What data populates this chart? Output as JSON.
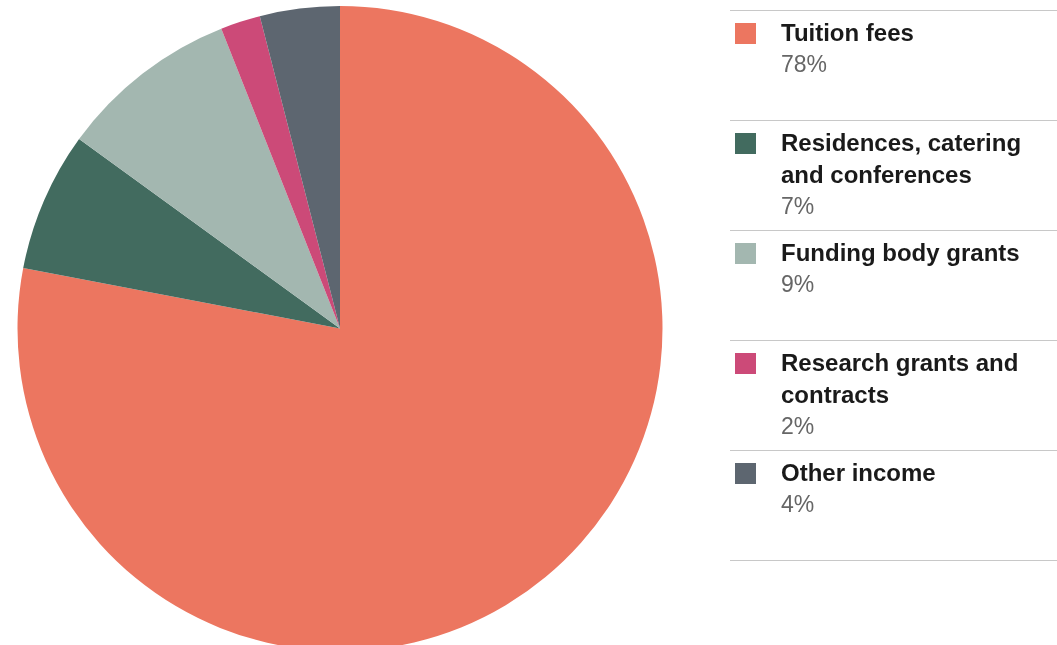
{
  "chart_data": {
    "type": "pie",
    "categories": [
      "Tuition fees",
      "Residences, catering and conferences",
      "Funding body grants",
      "Research grants and contracts",
      "Other income"
    ],
    "values": [
      78,
      7,
      9,
      2,
      4
    ],
    "value_labels": [
      "78%",
      "7%",
      "9%",
      "2%",
      "4%"
    ],
    "colors": [
      "#ec7660",
      "#426b5f",
      "#a3b7b0",
      "#cc4a78",
      "#5d6670"
    ],
    "legend": "right"
  }
}
